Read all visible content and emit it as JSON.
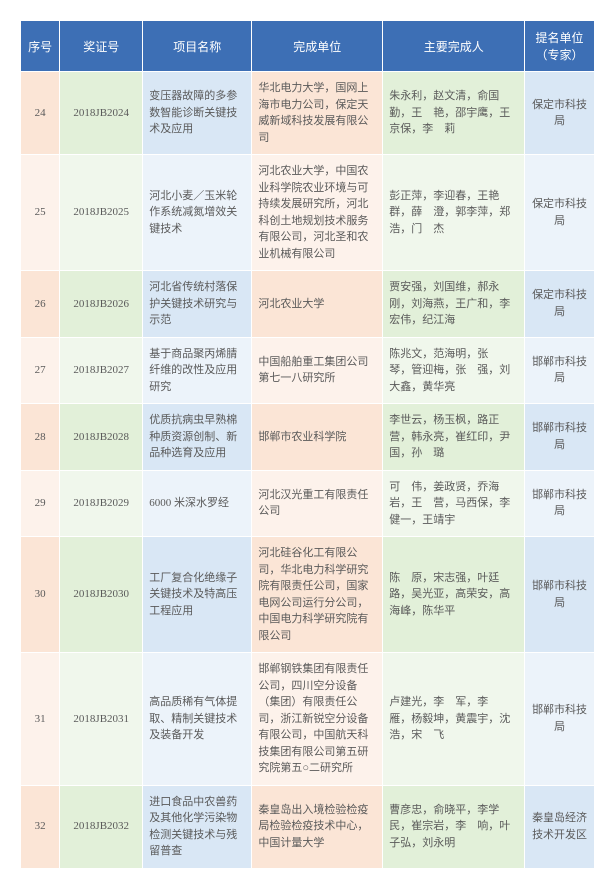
{
  "headers": [
    "序号",
    "奖证号",
    "项目名称",
    "完成单位",
    "主要完成人",
    "提名单位（专家）"
  ],
  "rows": [
    {
      "seq": "24",
      "cert": "2018JB2024",
      "name": "变压器故障的多参数智能诊断关键技术及应用",
      "unit": "华北电力大学，国网上海市电力公司，保定天威新域科技发展有限公司",
      "people": "朱永利，赵文清，俞国勤，王　艳，邵宇鹰，王京保，李　莉",
      "nom": "保定市科技局"
    },
    {
      "seq": "25",
      "cert": "2018JB2025",
      "name": "河北小麦／玉米轮作系统减氮增效关键技术",
      "unit": "河北农业大学，中国农业科学院农业环境与可持续发展研究所，河北科创土地规划技术服务有限公司，河北圣和农业机械有限公司",
      "people": "彭正萍，李迎春，王艳群，薛　澄，郭李萍，郑　浩，门　杰",
      "nom": "保定市科技局"
    },
    {
      "seq": "26",
      "cert": "2018JB2026",
      "name": "河北省传统村落保护关键技术研究与示范",
      "unit": "河北农业大学",
      "people": "贾安强，刘国维，郝永刚，刘海燕，王广和，李宏伟，纪江海",
      "nom": "保定市科技局"
    },
    {
      "seq": "27",
      "cert": "2018JB2027",
      "name": "基于商品聚丙烯腈纤维的改性及应用研究",
      "unit": "中国船舶重工集团公司第七一八研究所",
      "people": "陈兆文，范海明，张　琴，管迎梅，张　强，刘大鑫，黄华亮",
      "nom": "邯郸市科技局"
    },
    {
      "seq": "28",
      "cert": "2018JB2028",
      "name": "优质抗病虫早熟棉种质资源创制、新品种选育及应用",
      "unit": "邯郸市农业科学院",
      "people": "李世云，杨玉枫，路正营，韩永亮，崔红印，尹　国，孙　璐",
      "nom": "邯郸市科技局"
    },
    {
      "seq": "29",
      "cert": "2018JB2029",
      "name": "6000 米深水罗经",
      "unit": "河北汉光重工有限责任公司",
      "people": "可　伟，姜政贤，乔海岩，王　营，马西保，李健一，王靖宇",
      "nom": "邯郸市科技局"
    },
    {
      "seq": "30",
      "cert": "2018JB2030",
      "name": "工厂复合化绝缘子关键技术及特高压工程应用",
      "unit": "河北硅谷化工有限公司，华北电力科学研究院有限责任公司，国家电网公司运行分公司，中国电力科学研究院有限公司",
      "people": "陈　原，宋志强，叶廷路，吴光亚，高荣安，高海峰，陈华平",
      "nom": "邯郸市科技局"
    },
    {
      "seq": "31",
      "cert": "2018JB2031",
      "name": "高品质稀有气体提取、精制关键技术及装备开发",
      "unit": "邯郸钢铁集团有限责任公司，四川空分设备（集团）有限责任公司，浙江新锐空分设备有限公司，中国航天科技集团有限公司第五研究院第五○二研究所",
      "people": "卢建光，李　军，李　雁，杨毅坤，黄震宇，沈　浩，宋　飞",
      "nom": "邯郸市科技局"
    },
    {
      "seq": "32",
      "cert": "2018JB2032",
      "name": "进口食品中农兽药及其他化学污染物检测关键技术与残留普查",
      "unit": "秦皇岛出入境检验检疫局检验检疫技术中心，中国计量大学",
      "people": "曹彦忠，俞晓平，李学民，崔宗岩，李　响，叶子弘，刘永明",
      "nom": "秦皇岛经济技术开发区"
    }
  ]
}
